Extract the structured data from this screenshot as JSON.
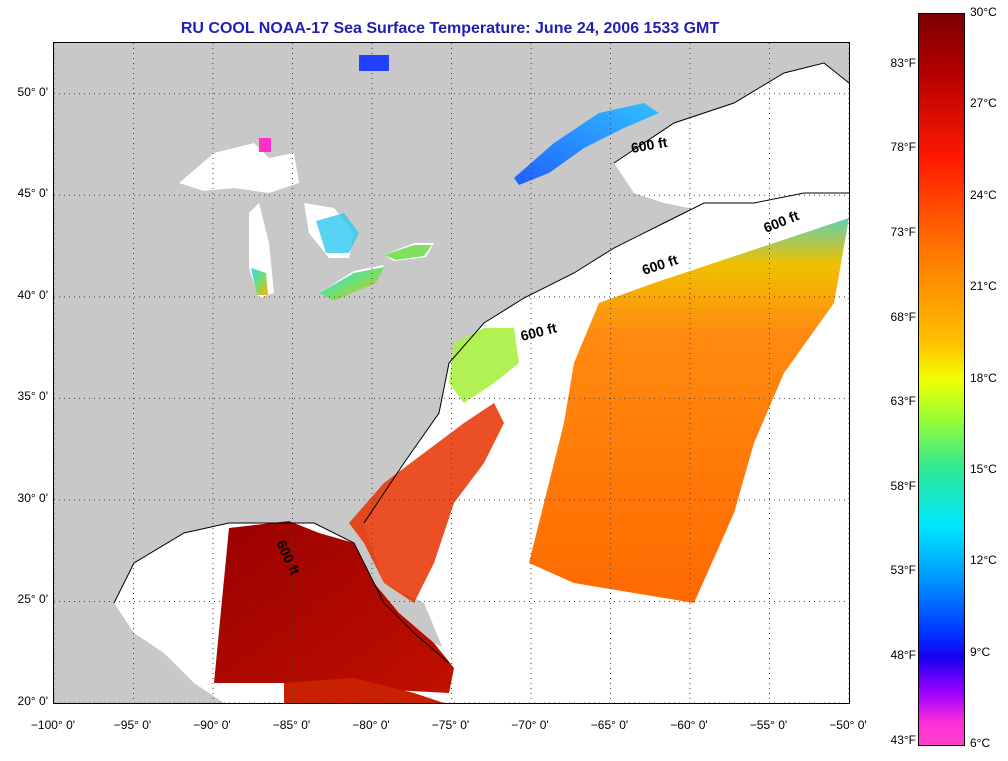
{
  "title": "RU COOL  NOAA-17  Sea Surface Temperature:  June 24, 2006 1533 GMT",
  "map": {
    "lon_range": [
      -100,
      -50
    ],
    "lat_range": [
      20,
      52.5
    ],
    "land_color": "#c8c8c8",
    "ocean_nodata_color": "#ffffff",
    "latitude_labels": [
      {
        "value": 20,
        "text": "20° 0'"
      },
      {
        "value": 25,
        "text": "25° 0'"
      },
      {
        "value": 30,
        "text": "30° 0'"
      },
      {
        "value": 35,
        "text": "35° 0'"
      },
      {
        "value": 40,
        "text": "40° 0'"
      },
      {
        "value": 45,
        "text": "45° 0'"
      },
      {
        "value": 50,
        "text": "50° 0'"
      }
    ],
    "longitude_labels": [
      {
        "value": -100,
        "text": "−100° 0'"
      },
      {
        "value": -95,
        "text": "−95° 0'"
      },
      {
        "value": -90,
        "text": "−90° 0'"
      },
      {
        "value": -85,
        "text": "−85° 0'"
      },
      {
        "value": -80,
        "text": "−80° 0'"
      },
      {
        "value": -75,
        "text": "−75° 0'"
      },
      {
        "value": -70,
        "text": "−70° 0'"
      },
      {
        "value": -65,
        "text": "−65° 0'"
      },
      {
        "value": -60,
        "text": "−60° 0'"
      },
      {
        "value": -55,
        "text": "−55° 0'"
      },
      {
        "value": -50,
        "text": "−50° 0'"
      }
    ],
    "contour_labels": [
      "600 ft",
      "600 ft",
      "600 ft",
      "600 ft",
      "600 ft"
    ]
  },
  "colorbar": {
    "range_c": [
      6,
      30
    ],
    "celsius_labels": [
      "30°C",
      "27°C",
      "24°C",
      "21°C",
      "18°C",
      "15°C",
      "12°C",
      "9°C",
      "6°C"
    ],
    "fahrenheit_labels": [
      "83°F",
      "78°F",
      "73°F",
      "68°F",
      "63°F",
      "58°F",
      "53°F",
      "48°F",
      "43°F"
    ]
  }
}
